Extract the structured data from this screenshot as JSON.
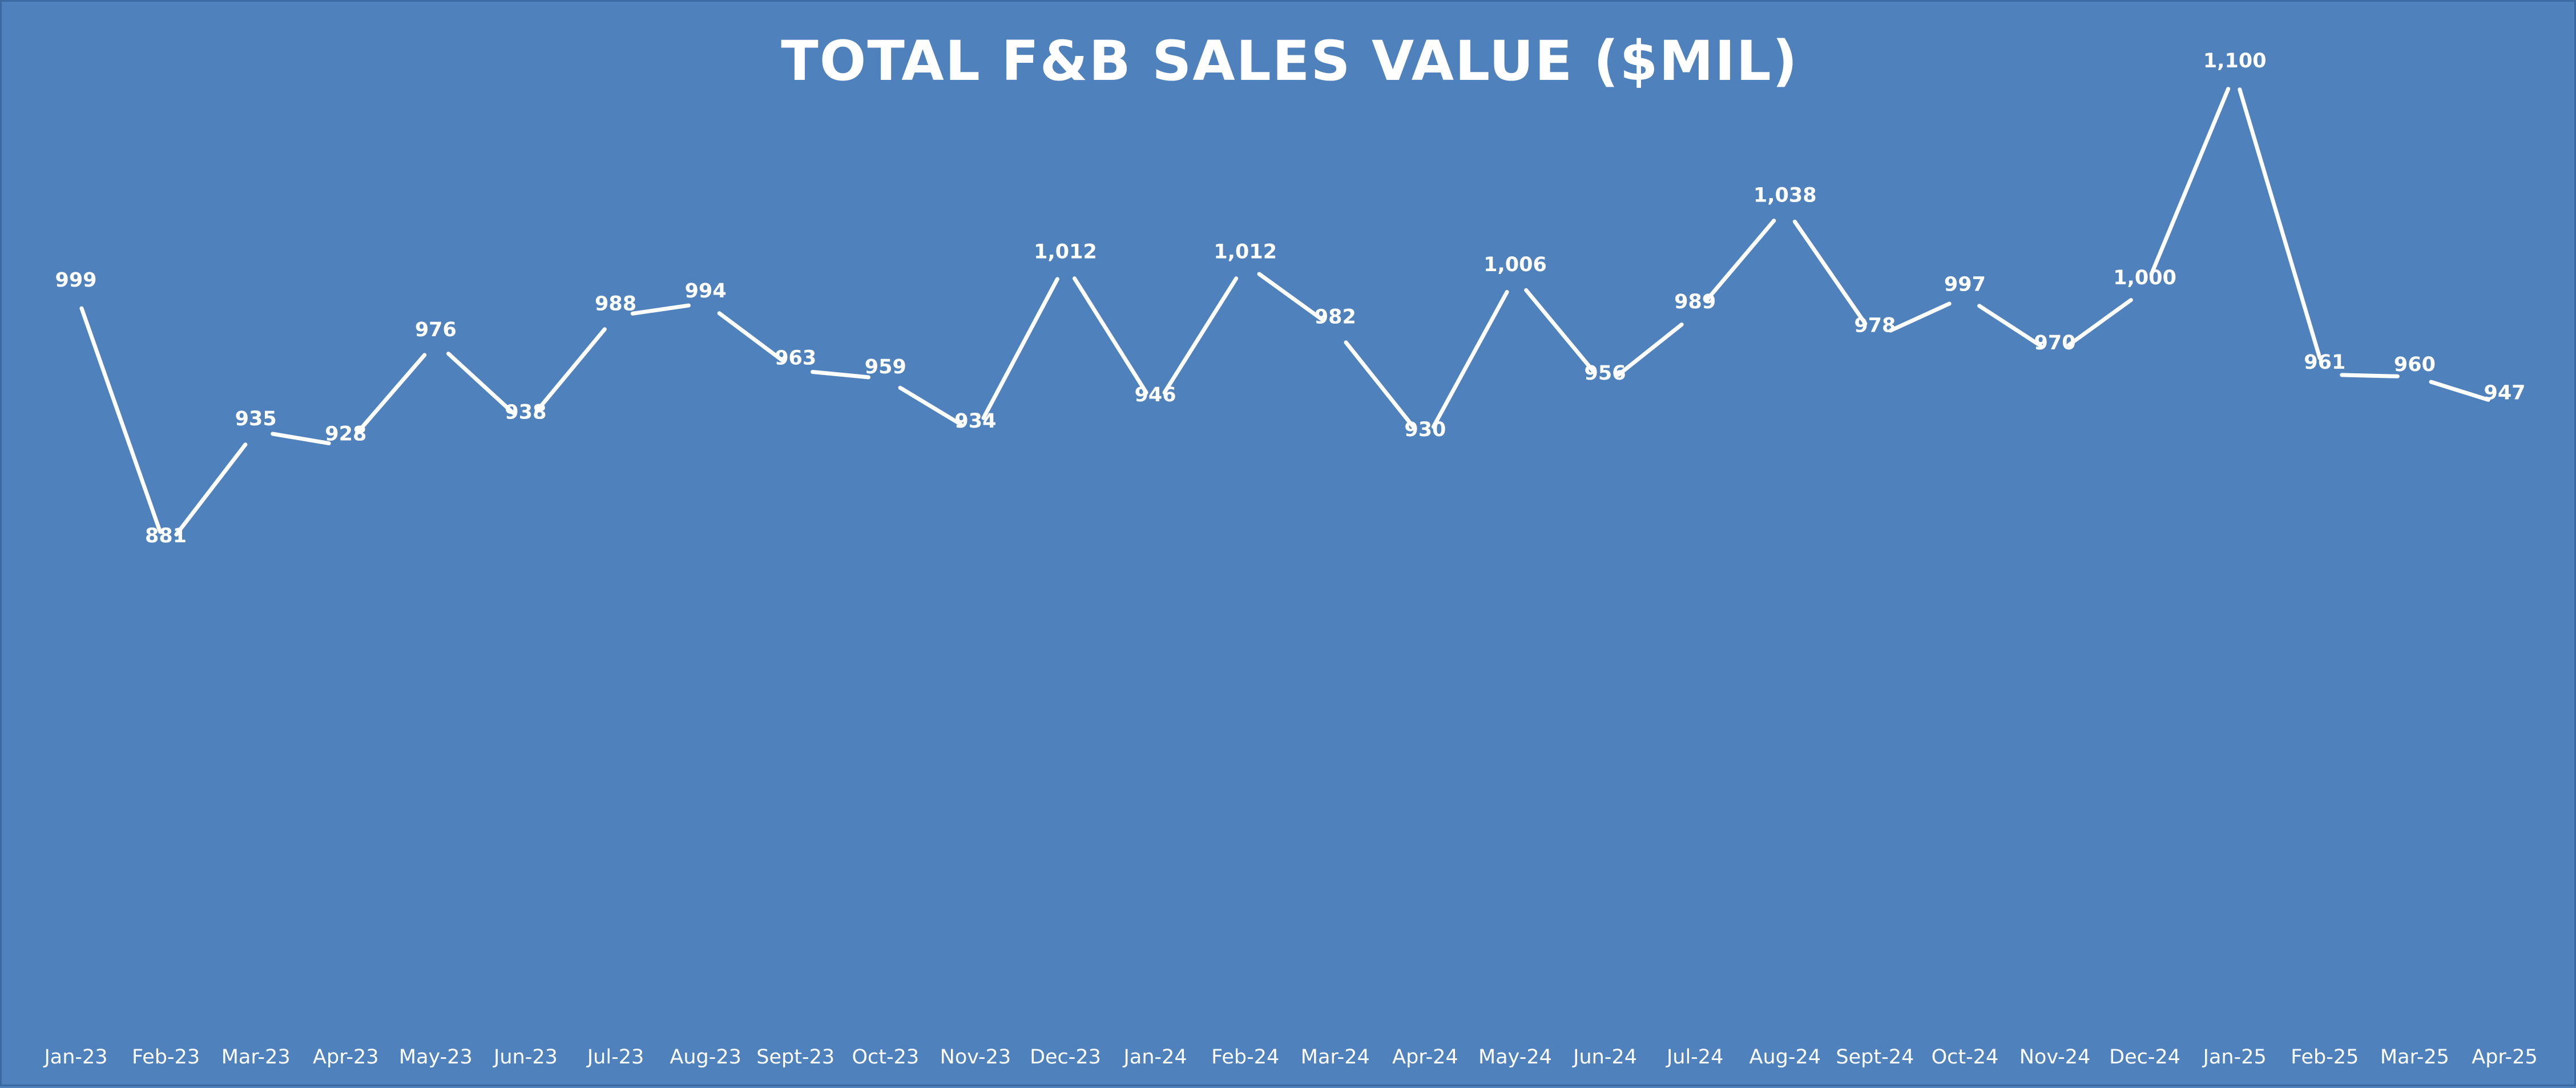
{
  "chart_data": {
    "type": "line",
    "title": "TOTAL F&B SALES VALUE ($MIL)",
    "categories": [
      "Jan-23",
      "Feb-23",
      "Mar-23",
      "Apr-23",
      "May-23",
      "Jun-23",
      "Jul-23",
      "Aug-23",
      "Sept-23",
      "Oct-23",
      "Nov-23",
      "Dec-23",
      "Jan-24",
      "Feb-24",
      "Mar-24",
      "Apr-24",
      "May-24",
      "Jun-24",
      "Jul-24",
      "Aug-24",
      "Sept-24",
      "Oct-24",
      "Nov-24",
      "Dec-24",
      "Jan-25",
      "Feb-25",
      "Mar-25",
      "Apr-25"
    ],
    "values": [
      999,
      881,
      935,
      928,
      976,
      938,
      988,
      994,
      963,
      959,
      934,
      1012,
      946,
      1012,
      982,
      930,
      1006,
      956,
      989,
      1038,
      978,
      997,
      970,
      1000,
      1100,
      961,
      960,
      947
    ],
    "data_labels": [
      "999",
      "881",
      "935",
      "928",
      "976",
      "938",
      "988",
      "994",
      "963",
      "959",
      "934",
      "1,012",
      "946",
      "1,012",
      "982",
      "930",
      "1,006",
      "956",
      "989",
      "1,038",
      "978",
      "997",
      "970",
      "1,000",
      "1,100",
      "961",
      "960",
      "947"
    ],
    "xlabel": "",
    "ylabel": "",
    "ylim": [
      0,
      1200
    ],
    "grid": false,
    "legend": "none",
    "drop_lines": true,
    "colors": {
      "background": "#4f81bd",
      "line": "#ffffff",
      "text": "#ffffff"
    }
  }
}
